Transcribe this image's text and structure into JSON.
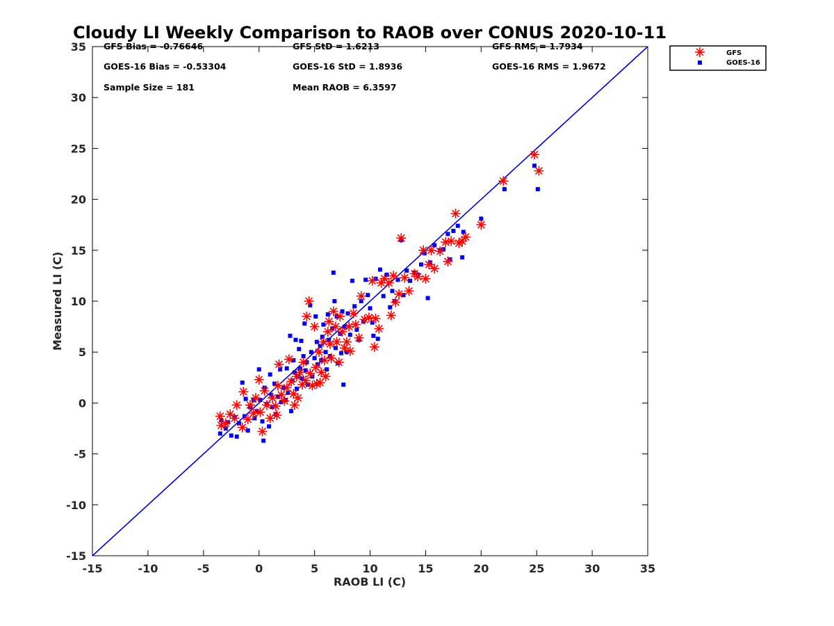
{
  "chart_data": {
    "type": "scatter",
    "title": "Cloudy LI Weekly Comparison to RAOB over CONUS 2020-10-11",
    "xlabel": "RAOB LI (C)",
    "ylabel": "Measured LI (C)",
    "xlim": [
      -15,
      35
    ],
    "ylim": [
      -15,
      35
    ],
    "xticks": [
      "-15",
      "-10",
      "-5",
      "0",
      "5",
      "10",
      "15",
      "20",
      "25",
      "30",
      "35"
    ],
    "yticks": [
      "-15",
      "-10",
      "-5",
      "0",
      "5",
      "10",
      "15",
      "20",
      "25",
      "30",
      "35"
    ],
    "grid": false,
    "legend_position": "top-right",
    "reference_line": {
      "x": [
        -15,
        35
      ],
      "y": [
        -15,
        35
      ],
      "color": "#0000dd"
    },
    "stats": [
      "GFS Bias = -0.76646",
      "GFS StD = 1.6213",
      "GFS RMS = 1.7934",
      "GOES-16 Bias = -0.53304",
      "GOES-16 StD = 1.8936",
      "GOES-16 RMS = 1.9672",
      "Sample Size = 181",
      "Mean RAOB = 6.3597"
    ],
    "series": [
      {
        "name": "GFS",
        "marker": "asterisk",
        "color": "#ff0000",
        "points": [
          [
            -3.5,
            -1.3
          ],
          [
            -3.4,
            -2.2
          ],
          [
            -3.0,
            -2.0
          ],
          [
            -2.6,
            -1.1
          ],
          [
            -2.2,
            -1.5
          ],
          [
            -2.0,
            -0.2
          ],
          [
            -1.5,
            -2.4
          ],
          [
            -1.4,
            1.1
          ],
          [
            -1.0,
            -1.6
          ],
          [
            -0.8,
            -0.2
          ],
          [
            -0.5,
            -1.0
          ],
          [
            -0.3,
            0.5
          ],
          [
            0.0,
            2.3
          ],
          [
            0.1,
            -0.9
          ],
          [
            0.3,
            -2.8
          ],
          [
            0.5,
            1.2
          ],
          [
            0.7,
            -0.2
          ],
          [
            1.0,
            -1.5
          ],
          [
            1.2,
            0.5
          ],
          [
            1.5,
            -0.3
          ],
          [
            1.6,
            -1.2
          ],
          [
            1.7,
            1.7
          ],
          [
            1.8,
            3.8
          ],
          [
            2.0,
            0.8
          ],
          [
            2.3,
            0.2
          ],
          [
            2.5,
            1.5
          ],
          [
            2.7,
            4.3
          ],
          [
            2.9,
            2.1
          ],
          [
            3.1,
            0.9
          ],
          [
            3.2,
            -0.2
          ],
          [
            3.4,
            2.6
          ],
          [
            3.5,
            0.5
          ],
          [
            3.7,
            3.0
          ],
          [
            3.9,
            1.8
          ],
          [
            4.0,
            4.0
          ],
          [
            4.2,
            2.2
          ],
          [
            4.3,
            8.5
          ],
          [
            4.5,
            10.0
          ],
          [
            4.6,
            2.9
          ],
          [
            4.8,
            1.7
          ],
          [
            5.0,
            7.5
          ],
          [
            5.1,
            3.5
          ],
          [
            5.2,
            1.9
          ],
          [
            5.4,
            5.0
          ],
          [
            5.5,
            2.0
          ],
          [
            5.6,
            3.0
          ],
          [
            5.8,
            6.0
          ],
          [
            5.9,
            4.2
          ],
          [
            6.0,
            2.6
          ],
          [
            6.2,
            7.0
          ],
          [
            6.3,
            8.0
          ],
          [
            6.4,
            5.8
          ],
          [
            6.5,
            4.4
          ],
          [
            6.7,
            9.0
          ],
          [
            6.9,
            7.5
          ],
          [
            7.0,
            6.0
          ],
          [
            7.2,
            4.0
          ],
          [
            7.3,
            8.5
          ],
          [
            7.5,
            7.0
          ],
          [
            7.7,
            5.4
          ],
          [
            7.9,
            6.0
          ],
          [
            8.1,
            7.5
          ],
          [
            8.2,
            5.1
          ],
          [
            8.5,
            8.8
          ],
          [
            8.7,
            7.7
          ],
          [
            9.0,
            6.4
          ],
          [
            9.2,
            10.5
          ],
          [
            9.5,
            8.2
          ],
          [
            9.9,
            8.4
          ],
          [
            10.2,
            12.0
          ],
          [
            10.4,
            5.5
          ],
          [
            10.5,
            8.3
          ],
          [
            10.8,
            7.3
          ],
          [
            11.0,
            11.8
          ],
          [
            11.3,
            12.2
          ],
          [
            11.7,
            11.8
          ],
          [
            11.9,
            8.6
          ],
          [
            12.1,
            12.5
          ],
          [
            12.3,
            9.9
          ],
          [
            12.6,
            10.7
          ],
          [
            12.8,
            16.2
          ],
          [
            13.1,
            12.3
          ],
          [
            13.5,
            11.0
          ],
          [
            14.0,
            12.7
          ],
          [
            14.3,
            12.4
          ],
          [
            14.8,
            15.0
          ],
          [
            15.0,
            12.2
          ],
          [
            15.3,
            13.6
          ],
          [
            15.5,
            15.0
          ],
          [
            15.8,
            13.2
          ],
          [
            16.3,
            14.9
          ],
          [
            16.8,
            15.8
          ],
          [
            17.0,
            13.9
          ],
          [
            17.3,
            15.9
          ],
          [
            17.7,
            18.6
          ],
          [
            18.0,
            15.7
          ],
          [
            18.3,
            15.9
          ],
          [
            18.6,
            16.3
          ],
          [
            20.0,
            17.5
          ],
          [
            22.0,
            21.8
          ],
          [
            24.8,
            24.4
          ],
          [
            25.2,
            22.8
          ]
        ]
      },
      {
        "name": "GOES-16",
        "marker": "square",
        "color": "#0000ee",
        "points": [
          [
            -3.5,
            -3.0
          ],
          [
            -3.4,
            -1.7
          ],
          [
            -3.0,
            -2.5
          ],
          [
            -2.8,
            -1.9
          ],
          [
            -2.5,
            -3.2
          ],
          [
            -2.2,
            -1.4
          ],
          [
            -2.0,
            -3.3
          ],
          [
            -1.8,
            -2.0
          ],
          [
            -1.5,
            2.0
          ],
          [
            -1.3,
            -1.3
          ],
          [
            -1.2,
            0.4
          ],
          [
            -1.0,
            -2.7
          ],
          [
            -0.8,
            -0.4
          ],
          [
            -0.5,
            0.3
          ],
          [
            -0.4,
            -1.5
          ],
          [
            -0.2,
            -0.8
          ],
          [
            0.0,
            3.3
          ],
          [
            0.1,
            0.3
          ],
          [
            0.3,
            -1.8
          ],
          [
            0.4,
            -3.7
          ],
          [
            0.5,
            1.5
          ],
          [
            0.7,
            -0.1
          ],
          [
            0.9,
            -2.3
          ],
          [
            1.0,
            2.8
          ],
          [
            1.1,
            0.8
          ],
          [
            1.2,
            -0.4
          ],
          [
            1.4,
            1.9
          ],
          [
            1.5,
            -1.1
          ],
          [
            1.7,
            0.6
          ],
          [
            1.9,
            3.3
          ],
          [
            2.0,
            0.1
          ],
          [
            2.2,
            1.5
          ],
          [
            2.4,
            0.3
          ],
          [
            2.5,
            3.4
          ],
          [
            2.6,
            1.0
          ],
          [
            2.8,
            6.6
          ],
          [
            2.9,
            -0.8
          ],
          [
            3.0,
            2.2
          ],
          [
            3.1,
            4.2
          ],
          [
            3.2,
            3.0
          ],
          [
            3.3,
            6.2
          ],
          [
            3.4,
            1.4
          ],
          [
            3.5,
            2.6
          ],
          [
            3.6,
            5.3
          ],
          [
            3.7,
            3.4
          ],
          [
            3.8,
            6.1
          ],
          [
            3.9,
            2.4
          ],
          [
            4.0,
            4.6
          ],
          [
            4.1,
            7.8
          ],
          [
            4.2,
            3.2
          ],
          [
            4.3,
            4.0
          ],
          [
            4.4,
            1.8
          ],
          [
            4.6,
            9.6
          ],
          [
            4.7,
            5.0
          ],
          [
            4.8,
            2.6
          ],
          [
            5.0,
            4.4
          ],
          [
            5.1,
            8.5
          ],
          [
            5.2,
            6.0
          ],
          [
            5.3,
            3.8
          ],
          [
            5.5,
            5.6
          ],
          [
            5.6,
            4.2
          ],
          [
            5.7,
            6.5
          ],
          [
            5.8,
            7.7
          ],
          [
            6.0,
            5.0
          ],
          [
            6.1,
            3.3
          ],
          [
            6.2,
            8.7
          ],
          [
            6.3,
            6.2
          ],
          [
            6.4,
            4.6
          ],
          [
            6.6,
            7.3
          ],
          [
            6.7,
            12.8
          ],
          [
            6.8,
            10.0
          ],
          [
            6.9,
            5.4
          ],
          [
            7.0,
            8.5
          ],
          [
            7.1,
            3.9
          ],
          [
            7.3,
            6.8
          ],
          [
            7.4,
            4.9
          ],
          [
            7.5,
            9.0
          ],
          [
            7.6,
            1.8
          ],
          [
            7.7,
            7.5
          ],
          [
            7.9,
            5.0
          ],
          [
            8.0,
            8.8
          ],
          [
            8.2,
            6.7
          ],
          [
            8.4,
            12.0
          ],
          [
            8.6,
            9.5
          ],
          [
            8.8,
            7.2
          ],
          [
            9.0,
            6.2
          ],
          [
            9.2,
            10.0
          ],
          [
            9.4,
            8.0
          ],
          [
            9.6,
            12.1
          ],
          [
            9.8,
            10.6
          ],
          [
            10.0,
            9.3
          ],
          [
            10.2,
            7.9
          ],
          [
            10.3,
            6.6
          ],
          [
            10.5,
            12.2
          ],
          [
            10.7,
            6.3
          ],
          [
            10.9,
            13.1
          ],
          [
            11.2,
            10.5
          ],
          [
            11.5,
            12.6
          ],
          [
            11.8,
            9.4
          ],
          [
            12.0,
            11.0
          ],
          [
            12.2,
            10.0
          ],
          [
            12.5,
            12.1
          ],
          [
            12.8,
            16.0
          ],
          [
            13.0,
            10.6
          ],
          [
            13.3,
            13.0
          ],
          [
            13.6,
            12.0
          ],
          [
            14.0,
            12.8
          ],
          [
            14.3,
            12.6
          ],
          [
            14.6,
            13.6
          ],
          [
            14.9,
            14.7
          ],
          [
            15.2,
            10.3
          ],
          [
            15.4,
            13.8
          ],
          [
            15.8,
            15.5
          ],
          [
            16.3,
            15.0
          ],
          [
            16.6,
            15.1
          ],
          [
            17.0,
            16.6
          ],
          [
            17.2,
            14.1
          ],
          [
            17.5,
            16.9
          ],
          [
            17.9,
            17.4
          ],
          [
            18.3,
            14.3
          ],
          [
            18.4,
            16.8
          ],
          [
            20.0,
            18.1
          ],
          [
            22.1,
            21.0
          ],
          [
            24.8,
            23.3
          ],
          [
            25.1,
            21.0
          ]
        ]
      }
    ]
  }
}
